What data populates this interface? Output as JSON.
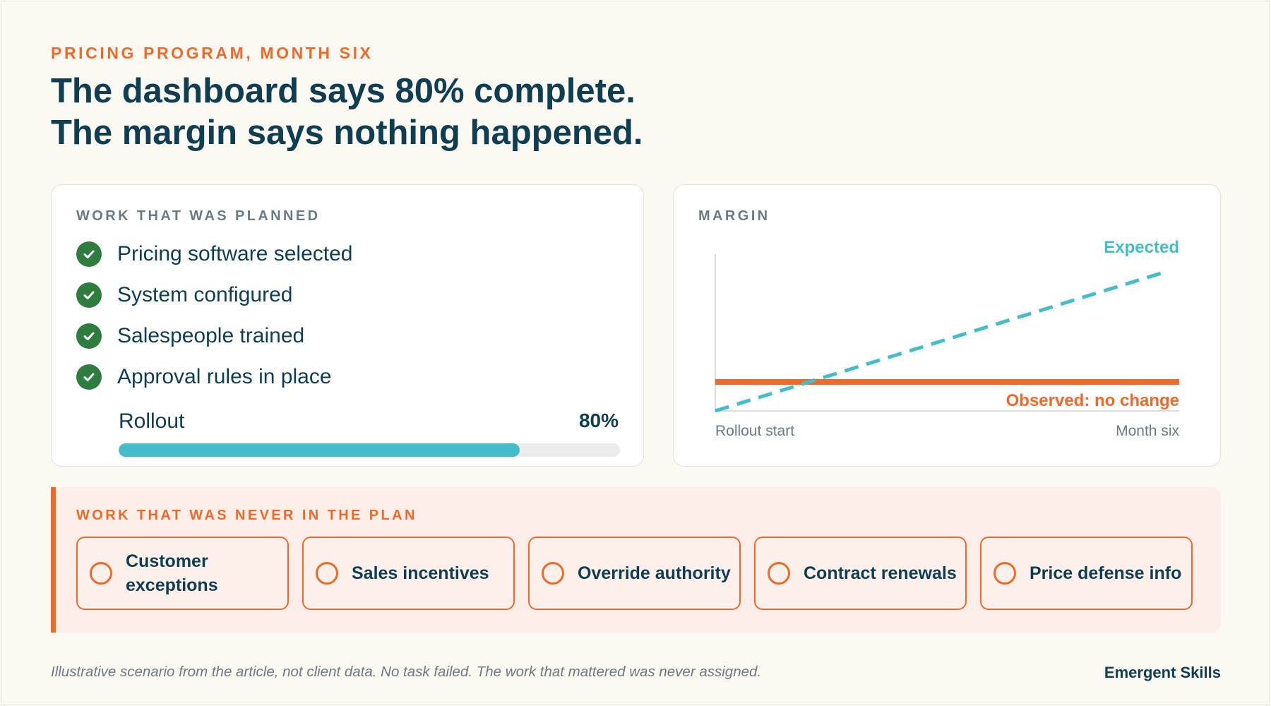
{
  "header": {
    "eyebrow": "PRICING PROGRAM, MONTH SIX",
    "headline_line1": "The dashboard says 80% complete.",
    "headline_line2": "The margin says nothing happened."
  },
  "planned": {
    "label": "WORK THAT WAS PLANNED",
    "tasks": [
      "Pricing software selected",
      "System configured",
      "Salespeople trained",
      "Approval rules in place"
    ],
    "rollout_label": "Rollout",
    "rollout_value": "80%",
    "rollout_fraction": 0.8
  },
  "margin": {
    "label": "MARGIN",
    "expected_label": "Expected",
    "observed_label": "Observed: no change",
    "x_start_label": "Rollout start",
    "x_end_label": "Month six"
  },
  "never": {
    "label": "WORK THAT WAS NEVER IN THE PLAN",
    "items": [
      "Customer exceptions",
      "Sales incentives",
      "Override authority",
      "Contract renewals",
      "Price defense info"
    ]
  },
  "footer": {
    "note": "Illustrative scenario from the article, not client data. No task failed. The work that mattered was never assigned.",
    "brand": "Emergent Skills"
  },
  "colors": {
    "navy": "#0f3d52",
    "orange": "#ee6a2b",
    "teal": "#45bcc9",
    "green": "#2e7d3e"
  }
}
